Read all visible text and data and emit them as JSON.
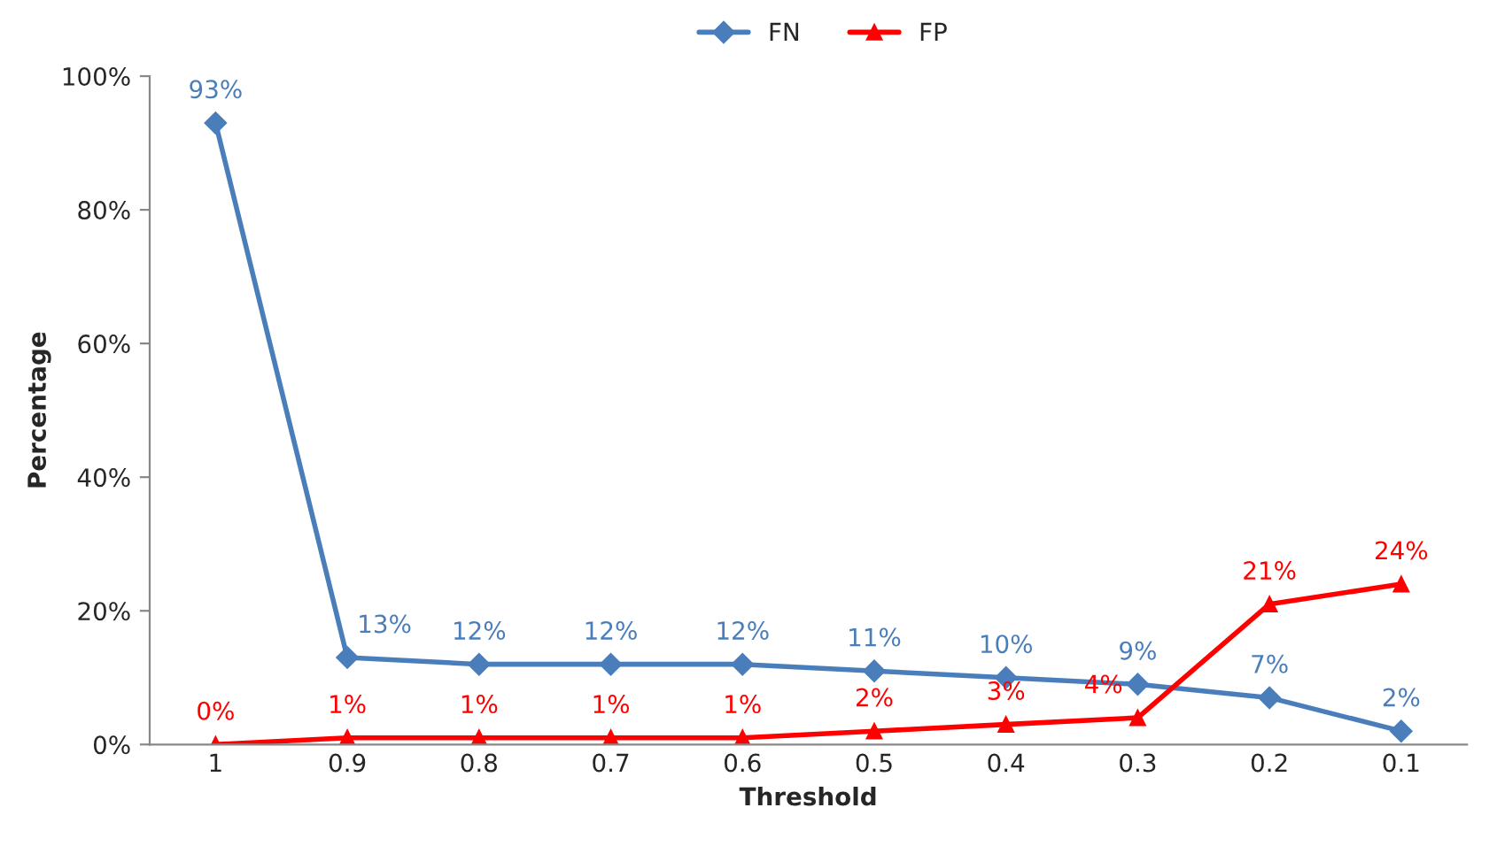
{
  "chart_data": {
    "type": "line",
    "xlabel": "Threshold",
    "ylabel": "Percentage",
    "categories": [
      "1",
      "0.9",
      "0.8",
      "0.7",
      "0.6",
      "0.5",
      "0.4",
      "0.3",
      "0.2",
      "0.1"
    ],
    "series": [
      {
        "name": "FN",
        "color": "#4a7ebb",
        "marker": "diamond",
        "values": [
          93,
          13,
          12,
          12,
          12,
          11,
          10,
          9,
          7,
          2
        ],
        "value_labels": [
          "93%",
          "13%",
          "12%",
          "12%",
          "12%",
          "11%",
          "10%",
          "9%",
          "7%",
          "2%"
        ]
      },
      {
        "name": "FP",
        "color": "#ff0000",
        "marker": "triangle",
        "values": [
          0,
          1,
          1,
          1,
          1,
          2,
          3,
          4,
          21,
          24
        ],
        "value_labels": [
          "0%",
          "1%",
          "1%",
          "1%",
          "1%",
          "2%",
          "3%",
          "4%",
          "21%",
          "24%"
        ]
      }
    ],
    "ylim": [
      0,
      100
    ],
    "yticks": [
      {
        "value": 0,
        "label": "0%"
      },
      {
        "value": 20,
        "label": "20%"
      },
      {
        "value": 40,
        "label": "40%"
      },
      {
        "value": 60,
        "label": "60%"
      },
      {
        "value": 80,
        "label": "80%"
      },
      {
        "value": 100,
        "label": "100%"
      }
    ],
    "legend": "top",
    "grid": false,
    "line_style": "solid"
  }
}
